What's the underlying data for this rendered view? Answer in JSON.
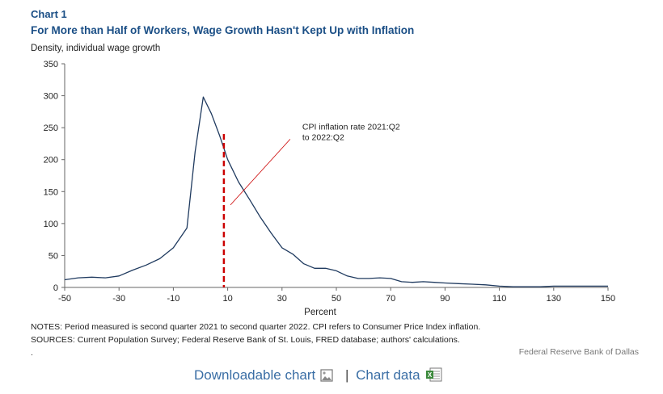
{
  "header": {
    "chart_label": "Chart 1",
    "title": "For More than Half of Workers, Wage Growth Hasn't Kept Up with Inflation",
    "ylabel": "Density, individual  wage growth"
  },
  "notes": {
    "notes_text": "NOTES: Period measured is second quarter 2021 to second quarter 2022. CPI refers to Consumer Price Index inflation.",
    "sources_text": "SOURCES: Current Population Survey; Federal Reserve Bank of St. Louis, FRED database; authors' calculations.",
    "dot": "."
  },
  "credit": "Federal Reserve Bank of Dallas",
  "links": {
    "downloadable": "Downloadable chart",
    "separator": "|",
    "chart_data": "Chart data"
  },
  "colors": {
    "title": "#1b4f86",
    "line": "#1f3a5f",
    "cpi_marker": "#cc0000",
    "link": "#3a6ea5"
  },
  "chart_data": {
    "type": "line",
    "title": "For More than Half of Workers, Wage Growth Hasn't Kept Up with Inflation",
    "xlabel": "Percent",
    "ylabel": "Density, individual  wage growth",
    "xlim": [
      -50,
      150
    ],
    "ylim": [
      0,
      350
    ],
    "xticks": [
      -50,
      -30,
      -10,
      10,
      30,
      50,
      70,
      90,
      110,
      130,
      150
    ],
    "yticks": [
      0,
      50,
      100,
      150,
      200,
      250,
      300,
      350
    ],
    "grid": false,
    "series": [
      {
        "x": [
          -50,
          -45,
          -40,
          -35,
          -30,
          -25,
          -20,
          -15,
          -10,
          -5,
          -2,
          1,
          4,
          7,
          10,
          14,
          18,
          22,
          26,
          30,
          34,
          38,
          42,
          46,
          50,
          54,
          58,
          62,
          66,
          70,
          74,
          78,
          82,
          86,
          90,
          95,
          100,
          105,
          110,
          115,
          120,
          125,
          130,
          135,
          140,
          145,
          150
        ],
        "y": [
          12,
          15,
          16,
          15,
          18,
          27,
          35,
          45,
          62,
          93,
          212,
          298,
          272,
          238,
          200,
          165,
          138,
          110,
          85,
          62,
          52,
          37,
          30,
          30,
          26,
          18,
          14,
          14,
          15,
          14,
          9,
          8,
          9,
          8,
          7,
          6,
          5,
          4,
          2,
          1,
          1,
          1,
          2,
          2,
          2,
          2,
          2
        ]
      }
    ],
    "cpi_marker": {
      "x": 8.6,
      "y": 240
    },
    "annotation": {
      "text_line1": "CPI inflation rate 2021:Q2",
      "text_line2": "to 2022:Q2",
      "arrow_from": [
        33,
        232
      ],
      "arrow_to": [
        11,
        129
      ]
    }
  }
}
